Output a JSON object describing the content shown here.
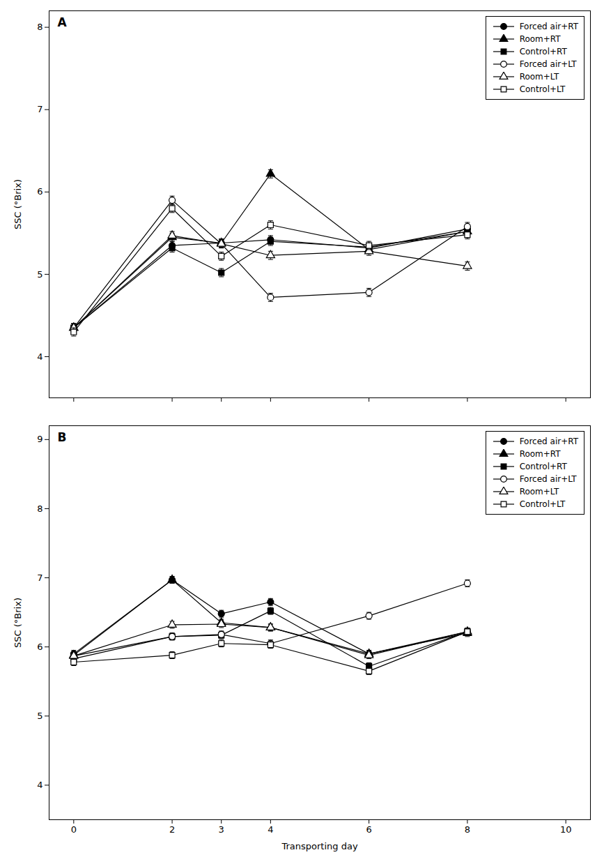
{
  "chart_data": [
    {
      "type": "line",
      "title": "A",
      "ylabel": "SSC (°Brix)",
      "x": [
        0,
        2,
        3,
        4,
        6,
        8
      ],
      "series": [
        {
          "name": "Forced air+RT",
          "values": [
            4.35,
            5.35,
            5.38,
            5.42,
            5.32,
            5.55
          ],
          "yerr": [
            0.05,
            0.05,
            0.05,
            0.05,
            0.05,
            0.05
          ],
          "marker": "circle",
          "color": "black"
        },
        {
          "name": "Room+RT",
          "values": [
            4.35,
            5.45,
            5.38,
            6.22,
            5.3,
            5.52
          ],
          "yerr": [
            0.05,
            0.05,
            0.05,
            0.05,
            0.05,
            0.05
          ],
          "marker": "triangle",
          "color": "black"
        },
        {
          "name": "Control+RT",
          "values": [
            4.35,
            5.32,
            5.02,
            5.4,
            5.33,
            5.52
          ],
          "yerr": [
            0.05,
            0.05,
            0.05,
            0.05,
            0.05,
            0.05
          ],
          "marker": "square",
          "color": "black"
        },
        {
          "name": "Forced air+LT",
          "values": [
            4.35,
            5.9,
            5.37,
            4.72,
            4.78,
            5.58
          ],
          "yerr": [
            0.05,
            0.05,
            0.05,
            0.05,
            0.05,
            0.05
          ],
          "marker": "circle-open",
          "color": "black"
        },
        {
          "name": "Room+LT",
          "values": [
            4.35,
            5.47,
            5.37,
            5.23,
            5.28,
            5.1
          ],
          "yerr": [
            0.05,
            0.05,
            0.05,
            0.05,
            0.05,
            0.05
          ],
          "marker": "triangle-open",
          "color": "black"
        },
        {
          "name": "Control+LT",
          "values": [
            4.3,
            5.8,
            5.22,
            5.6,
            5.35,
            5.48
          ],
          "yerr": [
            0.05,
            0.05,
            0.05,
            0.05,
            0.05,
            0.05
          ],
          "marker": "square-open",
          "color": "black"
        }
      ],
      "xlim": [
        -0.5,
        10.5
      ],
      "xticks": [
        0,
        2,
        3,
        4,
        6,
        8,
        10
      ],
      "ylim": [
        3.5,
        8.2
      ],
      "yticks": [
        4,
        5,
        6,
        7,
        8
      ],
      "tick_labels": "y",
      "legend": "upper right",
      "grid": false
    },
    {
      "type": "line",
      "title": "B",
      "xlabel": "Transporting day",
      "ylabel": "SSC (°Brix)",
      "x": [
        0,
        2,
        3,
        4,
        6,
        8
      ],
      "series": [
        {
          "name": "Forced air+RT",
          "values": [
            5.9,
            6.97,
            6.48,
            6.65,
            5.9,
            6.22
          ],
          "yerr": [
            0.05,
            0.05,
            0.05,
            0.05,
            0.05,
            0.05
          ],
          "marker": "circle",
          "color": "black"
        },
        {
          "name": "Room+RT",
          "values": [
            5.88,
            6.97,
            6.35,
            6.28,
            5.9,
            6.2
          ],
          "yerr": [
            0.05,
            0.05,
            0.05,
            0.05,
            0.05,
            0.05
          ],
          "marker": "triangle",
          "color": "black"
        },
        {
          "name": "Control+RT",
          "values": [
            5.83,
            6.15,
            6.17,
            6.52,
            5.72,
            6.22
          ],
          "yerr": [
            0.05,
            0.05,
            0.05,
            0.05,
            0.05,
            0.05
          ],
          "marker": "square",
          "color": "black"
        },
        {
          "name": "Forced air+LT",
          "values": [
            5.87,
            6.15,
            6.18,
            6.05,
            6.45,
            6.92
          ],
          "yerr": [
            0.05,
            0.05,
            0.05,
            0.05,
            0.05,
            0.05
          ],
          "marker": "circle-open",
          "color": "black"
        },
        {
          "name": "Room+LT",
          "values": [
            5.87,
            6.32,
            6.33,
            6.28,
            5.88,
            6.22
          ],
          "yerr": [
            0.05,
            0.05,
            0.05,
            0.05,
            0.05,
            0.05
          ],
          "marker": "triangle-open",
          "color": "black"
        },
        {
          "name": "Control+LT",
          "values": [
            5.78,
            5.88,
            6.05,
            6.03,
            5.65,
            6.22
          ],
          "yerr": [
            0.05,
            0.05,
            0.05,
            0.05,
            0.05,
            0.05
          ],
          "marker": "square-open",
          "color": "black"
        }
      ],
      "xlim": [
        -0.5,
        10.5
      ],
      "xticks": [
        0,
        2,
        3,
        4,
        6,
        8,
        10
      ],
      "ylim": [
        3.5,
        9.2
      ],
      "yticks": [
        4,
        5,
        6,
        7,
        8,
        9
      ],
      "legend": "upper right",
      "grid": false
    }
  ]
}
